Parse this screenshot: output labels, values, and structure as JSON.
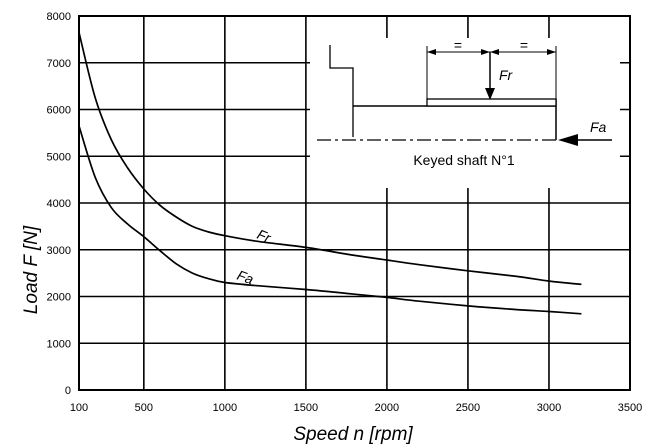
{
  "chart_data": {
    "type": "line",
    "xlabel": "Speed n [rpm]",
    "ylabel": "Load F [N]",
    "xlim": [
      100,
      3500
    ],
    "ylim": [
      0,
      8000
    ],
    "x_ticks": [
      "100",
      "500",
      "1000",
      "1500",
      "2000",
      "2500",
      "3000",
      "3500"
    ],
    "y_ticks": [
      "0",
      "1000",
      "2000",
      "3000",
      "4000",
      "5000",
      "6000",
      "7000",
      "8000"
    ],
    "grid": true,
    "series": [
      {
        "name": "Fr",
        "x": [
          100,
          200,
          300,
          400,
          500,
          600,
          700,
          800,
          900,
          1000,
          1200,
          1500,
          1800,
          2000,
          2200,
          2500,
          2800,
          3000,
          3200
        ],
        "values": [
          7650,
          6250,
          5350,
          4750,
          4300,
          3950,
          3700,
          3500,
          3380,
          3300,
          3180,
          3050,
          2880,
          2780,
          2680,
          2550,
          2430,
          2330,
          2260
        ]
      },
      {
        "name": "Fa",
        "x": [
          100,
          200,
          300,
          400,
          500,
          600,
          700,
          800,
          900,
          1000,
          1200,
          1500,
          1800,
          2000,
          2200,
          2500,
          2800,
          3000,
          3200
        ],
        "values": [
          5650,
          4550,
          3900,
          3550,
          3280,
          2980,
          2700,
          2500,
          2380,
          2300,
          2230,
          2150,
          2050,
          1980,
          1900,
          1800,
          1720,
          1680,
          1630
        ]
      }
    ]
  },
  "inset": {
    "caption": "Keyed shaft N°1",
    "radial_force": "Fr",
    "axial_force": "Fa",
    "dim_marks": [
      "=",
      "="
    ]
  }
}
